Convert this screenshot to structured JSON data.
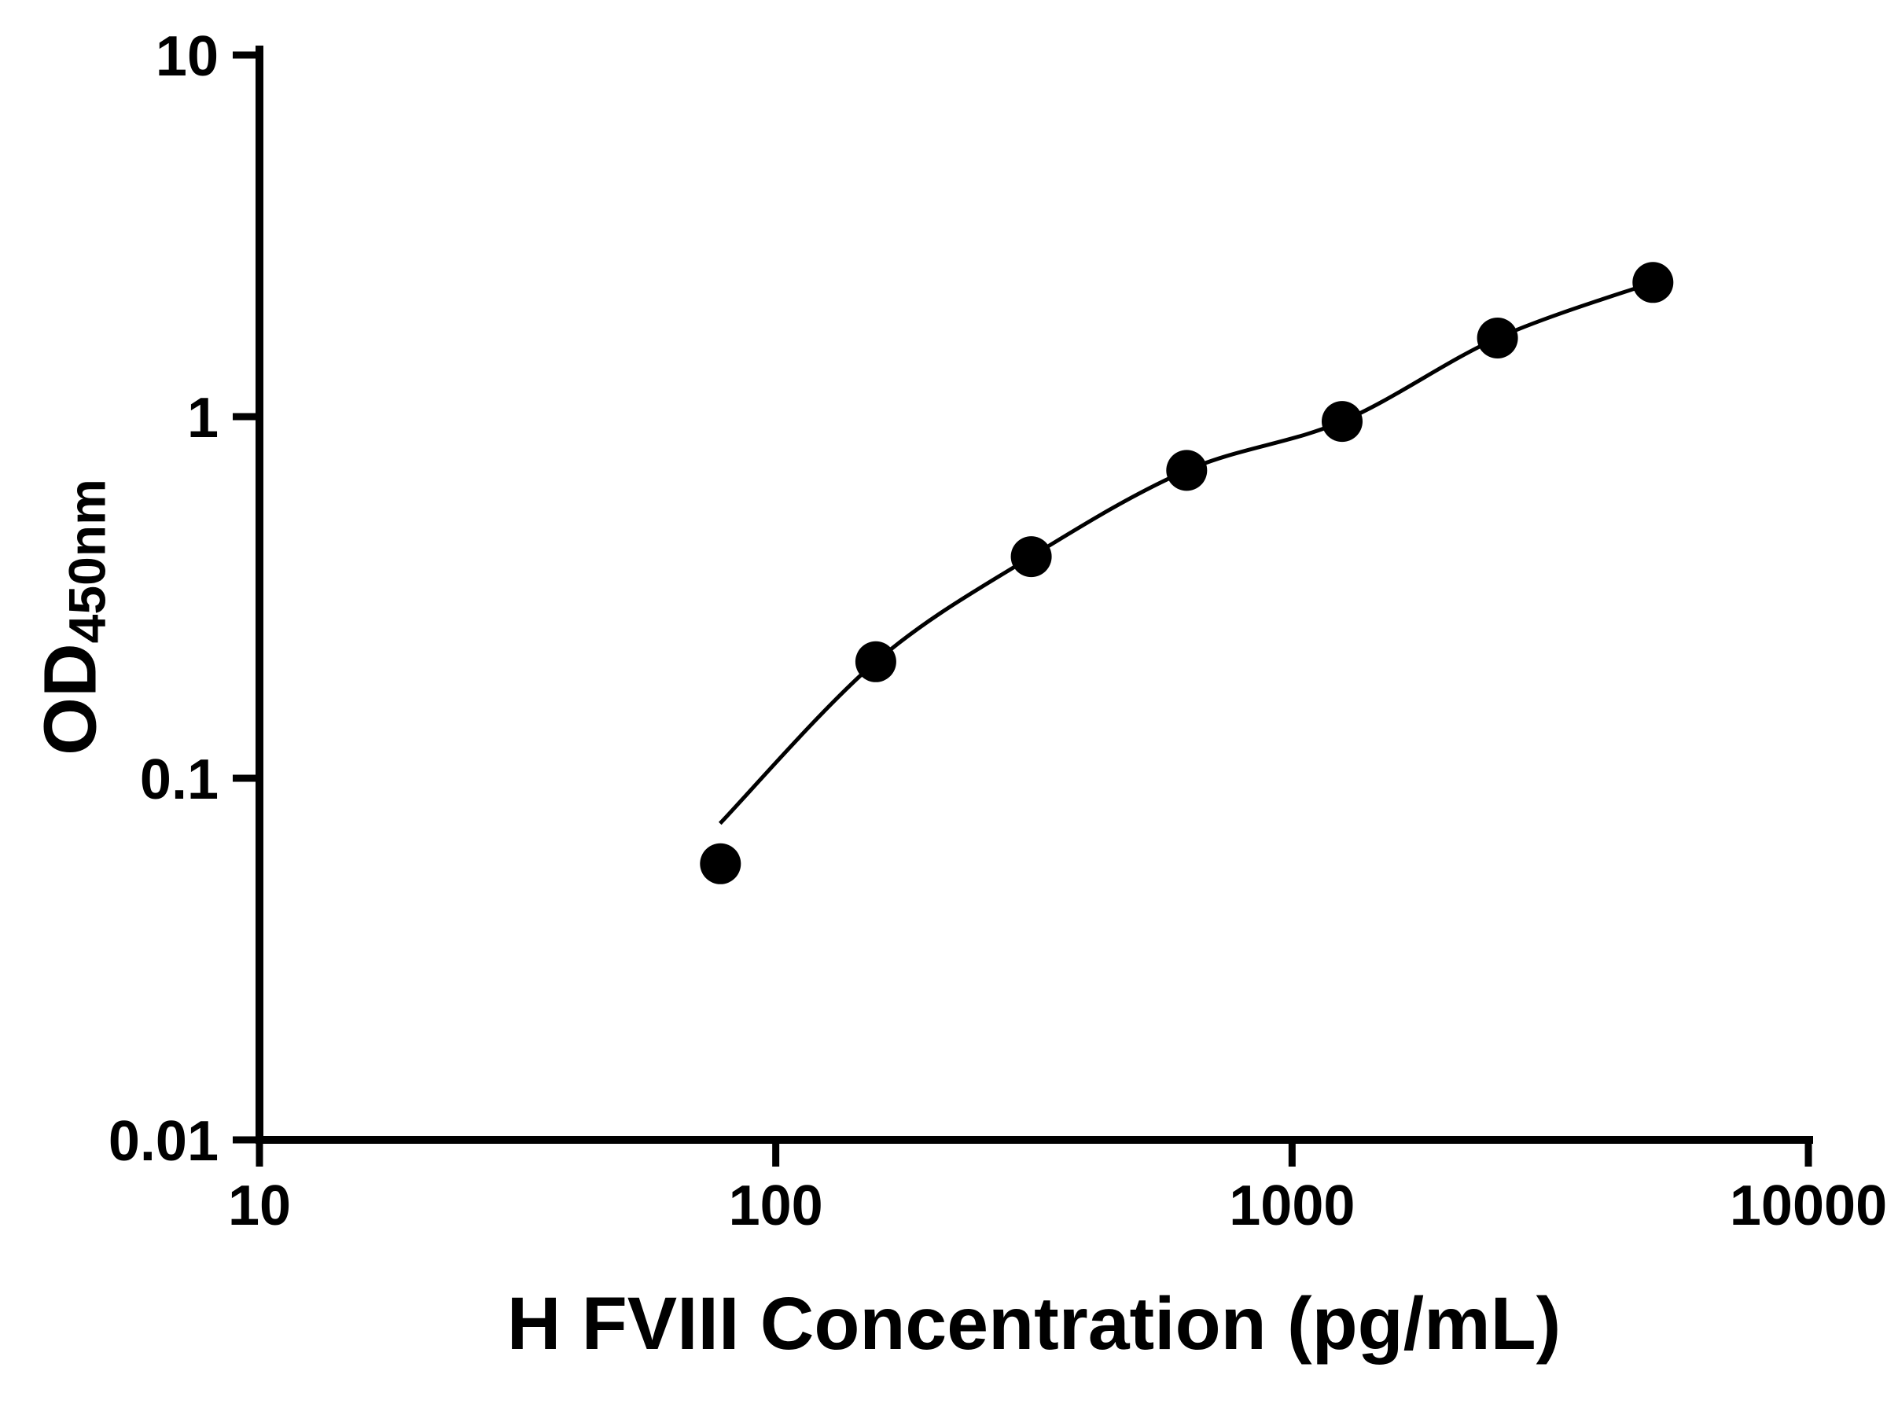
{
  "chart_data": {
    "type": "scatter",
    "title": "",
    "xlabel": "H FVIII Concentration (pg/mL)",
    "ylabel_main": "OD",
    "ylabel_sub": "450nm",
    "x_scale": "log",
    "y_scale": "log",
    "xlim": [
      10,
      10000
    ],
    "ylim": [
      0.01,
      10
    ],
    "x_ticks": [
      10,
      100,
      1000,
      10000
    ],
    "x_tick_labels": [
      "10",
      "100",
      "1000",
      "10000"
    ],
    "y_ticks": [
      0.01,
      0.1,
      1,
      10
    ],
    "y_tick_labels": [
      "0.01",
      "0.1",
      "1",
      "10"
    ],
    "grid": false,
    "legend": "none",
    "background_color": "#ffffff",
    "axis_color": "#000000",
    "marker_color": "#000000",
    "line_color": "#000000",
    "points": [
      {
        "x": 78.125,
        "y": 0.058
      },
      {
        "x": 156.25,
        "y": 0.21
      },
      {
        "x": 312.5,
        "y": 0.41
      },
      {
        "x": 625,
        "y": 0.71
      },
      {
        "x": 1250,
        "y": 0.97
      },
      {
        "x": 2500,
        "y": 1.65
      },
      {
        "x": 5000,
        "y": 2.35
      }
    ],
    "fit_curve_anchors": [
      {
        "x": 78,
        "y": 0.075
      },
      {
        "x": 156.25,
        "y": 0.21
      },
      {
        "x": 312.5,
        "y": 0.41
      },
      {
        "x": 625,
        "y": 0.71
      },
      {
        "x": 1250,
        "y": 0.97
      },
      {
        "x": 2500,
        "y": 1.65
      },
      {
        "x": 5000,
        "y": 2.35
      }
    ]
  }
}
